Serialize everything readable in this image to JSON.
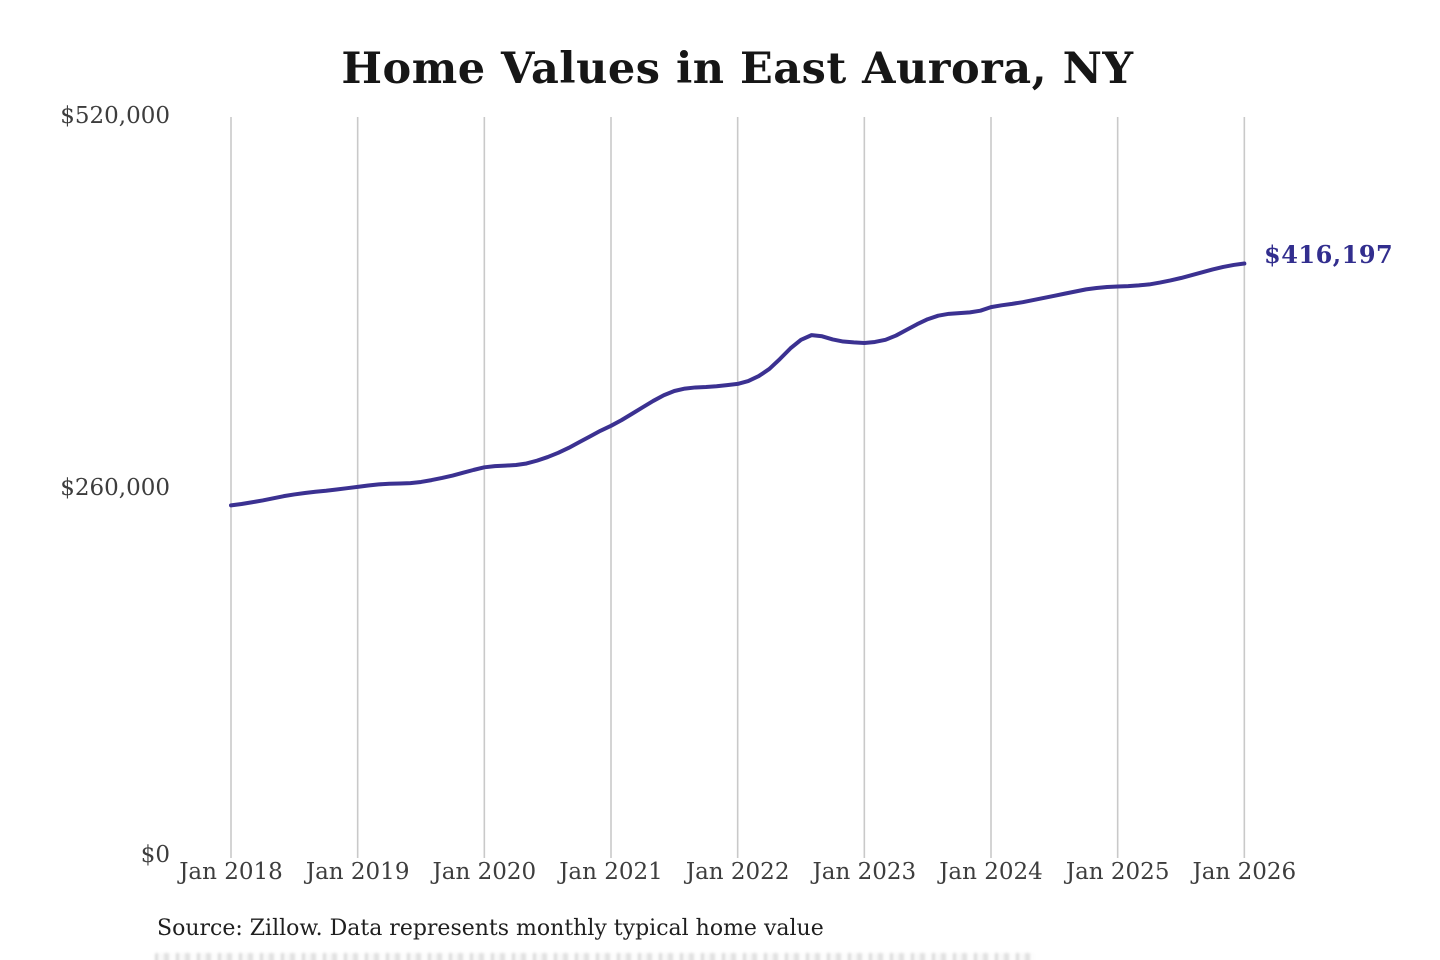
{
  "title": "Home Values in East Aurora, NY",
  "annotation": {
    "label": "$416,197"
  },
  "source_note": "Source: Zillow. Data represents monthly typical home value",
  "colors": {
    "line": "#3b3191",
    "annotation": "#322e8e",
    "gridline": "#c9c9c9",
    "title": "#161616",
    "axis_label": "#3d3d3d",
    "background": "#ffffff"
  },
  "chart_data": {
    "type": "line",
    "title": "Home Values in East Aurora, NY",
    "xlabel": "",
    "ylabel": "",
    "grid": "vertical-yearly",
    "legend": "none",
    "ylim": [
      0,
      520000
    ],
    "y_ticks": [
      0,
      260000,
      520000
    ],
    "y_tick_labels": [
      "$0",
      "$260,000",
      "$520,000"
    ],
    "x_tick_labels": [
      "Jan 2018",
      "Jan 2019",
      "Jan 2020",
      "Jan 2021",
      "Jan 2022",
      "Jan 2023",
      "Jan 2024",
      "Jan 2025",
      "Jan 2026"
    ],
    "x_start_month": "2018-01",
    "x_end_month": "2026-01",
    "final_value": 416197,
    "series": [
      {
        "name": "Monthly typical home value",
        "monthly_values": [
          246000,
          247000,
          248200,
          249500,
          251000,
          252500,
          253700,
          254700,
          255600,
          256300,
          257200,
          258100,
          259000,
          260000,
          260800,
          261200,
          261400,
          261700,
          262500,
          263800,
          265300,
          267000,
          269000,
          271000,
          272800,
          273600,
          274000,
          274400,
          275500,
          277500,
          280000,
          283000,
          286500,
          290500,
          294500,
          298500,
          302000,
          306000,
          310500,
          315000,
          319500,
          323500,
          326500,
          328200,
          329000,
          329300,
          329800,
          330600,
          331500,
          333500,
          337000,
          342000,
          349000,
          356500,
          362500,
          365800,
          365000,
          362800,
          361300,
          360700,
          360300,
          361000,
          362500,
          365500,
          369500,
          373500,
          377000,
          379500,
          380800,
          381300,
          381800,
          383000,
          385500,
          386800,
          387800,
          389000,
          390500,
          392000,
          393500,
          395000,
          396500,
          398000,
          399000,
          399700,
          400000,
          400300,
          400800,
          401500,
          402800,
          404300,
          406000,
          408000,
          410000,
          412000,
          413800,
          415200,
          416197
        ]
      }
    ]
  }
}
